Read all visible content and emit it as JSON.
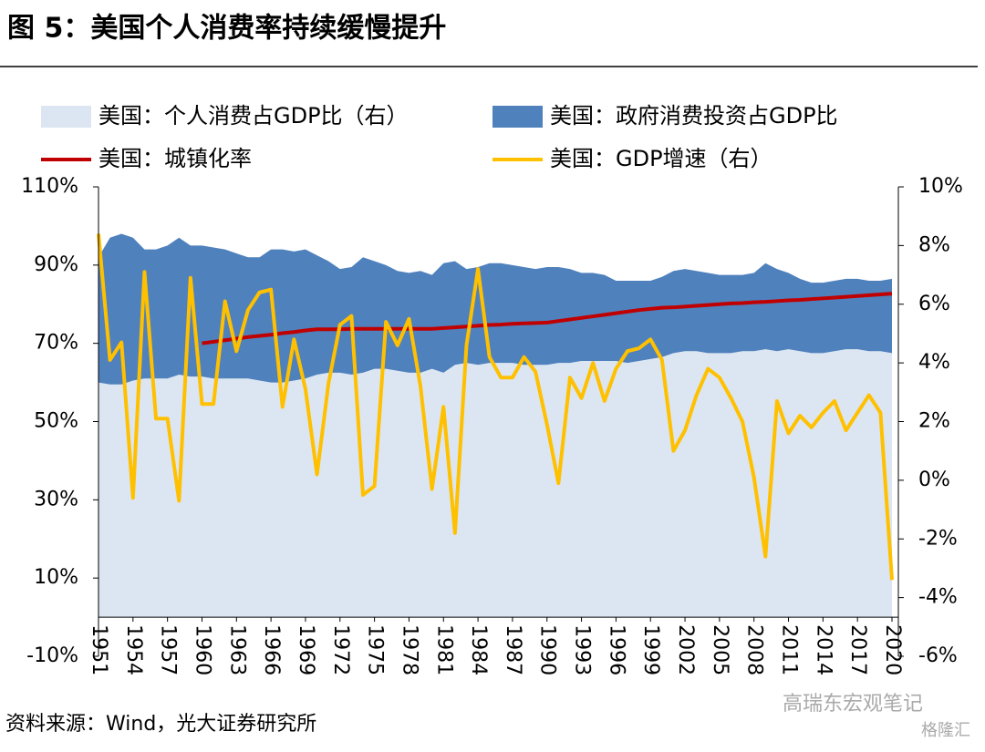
{
  "chart_data": {
    "type": "stacked-area-line",
    "title": "图 5：美国个人消费率持续缓慢提升",
    "source": "资料来源：Wind，光大证券研究所",
    "watermark": [
      "高瑞东宏观笔记",
      "格隆汇"
    ],
    "x": [
      1951,
      1952,
      1953,
      1954,
      1955,
      1956,
      1957,
      1958,
      1959,
      1960,
      1961,
      1962,
      1963,
      1964,
      1965,
      1966,
      1967,
      1968,
      1969,
      1970,
      1971,
      1972,
      1973,
      1974,
      1975,
      1976,
      1977,
      1978,
      1979,
      1980,
      1981,
      1982,
      1983,
      1984,
      1985,
      1986,
      1987,
      1988,
      1989,
      1990,
      1991,
      1992,
      1993,
      1994,
      1995,
      1996,
      1997,
      1998,
      1999,
      2000,
      2001,
      2002,
      2003,
      2004,
      2005,
      2006,
      2007,
      2008,
      2009,
      2010,
      2011,
      2012,
      2013,
      2014,
      2015,
      2016,
      2017,
      2018,
      2019,
      2020
    ],
    "xlim": [
      1951,
      2020
    ],
    "xticks": [
      1951,
      1954,
      1957,
      1960,
      1963,
      1966,
      1969,
      1972,
      1975,
      1978,
      1981,
      1984,
      1987,
      1990,
      1993,
      1996,
      1999,
      2002,
      2005,
      2008,
      2011,
      2014,
      2017,
      2020
    ],
    "ylim": [
      -10,
      110
    ],
    "yticks": [
      {
        "value": -10,
        "label": "-10%"
      },
      {
        "value": 10,
        "label": "10%"
      },
      {
        "value": 30,
        "label": "30%"
      },
      {
        "value": 50,
        "label": "50%"
      },
      {
        "value": 70,
        "label": "70%"
      },
      {
        "value": 90,
        "label": "90%"
      },
      {
        "value": 110,
        "label": "110%"
      }
    ],
    "y2lim": [
      -6,
      10
    ],
    "y2ticks": [
      {
        "value": -6,
        "label": "-6%"
      },
      {
        "value": -4,
        "label": "-4%"
      },
      {
        "value": -2,
        "label": "-2%"
      },
      {
        "value": 0,
        "label": "0%"
      },
      {
        "value": 2,
        "label": "2%"
      },
      {
        "value": 4,
        "label": "4%"
      },
      {
        "value": 6,
        "label": "6%"
      },
      {
        "value": 8,
        "label": "8%"
      },
      {
        "value": 10,
        "label": "10%"
      }
    ],
    "series": [
      {
        "name": "美国：个人消费占GDP比（右）",
        "kind": "area",
        "color": "#dce6f2",
        "values": [
          60,
          59.5,
          59.5,
          60.5,
          61,
          61,
          61,
          62,
          61.5,
          61.5,
          61,
          61,
          61,
          61,
          60.5,
          60,
          60,
          60.5,
          61,
          62,
          62.5,
          62.5,
          62,
          62.5,
          63.5,
          63.5,
          63,
          62.5,
          62.5,
          63.5,
          62.5,
          64.5,
          65,
          64.5,
          65,
          65,
          65,
          64.5,
          64.5,
          64.5,
          65,
          65,
          65.5,
          65.5,
          65.5,
          65.5,
          65,
          65.5,
          66,
          66.5,
          67.5,
          68,
          68,
          67.5,
          67.5,
          67.5,
          68,
          68,
          68.5,
          68,
          68.5,
          68,
          67.5,
          67.5,
          68,
          68.5,
          68.5,
          68,
          68,
          67.5
        ]
      },
      {
        "name": "美国：政府消费投资占GDP比",
        "kind": "area",
        "color": "#4f81bd",
        "values": [
          32,
          37.5,
          38.5,
          36.5,
          33,
          33,
          34,
          35,
          33.5,
          33.5,
          33.5,
          33,
          32,
          31,
          31.5,
          34,
          34,
          33,
          33,
          30.5,
          28.5,
          26.5,
          27.5,
          29.5,
          27.5,
          26.5,
          25.5,
          25.5,
          26,
          24,
          28,
          26.5,
          24,
          25,
          25.5,
          25.5,
          25,
          25,
          24.5,
          25,
          24.5,
          24,
          22.5,
          22.5,
          22,
          20.5,
          21,
          20.5,
          20,
          20.5,
          21,
          21,
          20.5,
          20.5,
          20,
          20,
          19.5,
          20,
          22,
          21,
          19.5,
          18.5,
          18,
          18,
          18,
          18,
          18,
          18,
          18,
          19
        ]
      },
      {
        "name": "美国：城镇化率",
        "kind": "line",
        "color": "#c00000",
        "values": [
          null,
          null,
          null,
          null,
          null,
          null,
          null,
          null,
          null,
          70.0,
          70.4,
          70.8,
          71.2,
          71.6,
          71.9,
          72.2,
          72.6,
          72.9,
          73.3,
          73.6,
          73.6,
          73.6,
          73.7,
          73.7,
          73.7,
          73.7,
          73.7,
          73.7,
          73.7,
          73.7,
          73.9,
          74.1,
          74.3,
          74.5,
          74.7,
          74.8,
          75.0,
          75.1,
          75.2,
          75.3,
          75.7,
          76.1,
          76.5,
          76.9,
          77.3,
          77.7,
          78.1,
          78.5,
          78.8,
          79.1,
          79.2,
          79.4,
          79.6,
          79.8,
          80.0,
          80.2,
          80.3,
          80.5,
          80.6,
          80.8,
          81.0,
          81.1,
          81.3,
          81.5,
          81.7,
          81.9,
          82.1,
          82.3,
          82.5,
          82.7
        ]
      },
      {
        "name": "美国：GDP增速（右）",
        "kind": "line",
        "axis": "y2",
        "color": "#ffc000",
        "values": [
          8.4,
          4.1,
          4.7,
          -0.6,
          7.1,
          2.1,
          2.1,
          -0.7,
          6.9,
          2.6,
          2.6,
          6.1,
          4.4,
          5.8,
          6.4,
          6.5,
          2.5,
          4.8,
          3.1,
          0.2,
          3.3,
          5.3,
          5.6,
          -0.5,
          -0.2,
          5.4,
          4.6,
          5.5,
          3.2,
          -0.3,
          2.5,
          -1.8,
          4.6,
          7.2,
          4.2,
          3.5,
          3.5,
          4.2,
          3.7,
          1.9,
          -0.1,
          3.5,
          2.8,
          4.0,
          2.7,
          3.8,
          4.4,
          4.5,
          4.8,
          4.1,
          1.0,
          1.7,
          2.9,
          3.8,
          3.5,
          2.8,
          2.0,
          0.1,
          -2.6,
          2.7,
          1.6,
          2.2,
          1.8,
          2.3,
          2.7,
          1.7,
          2.3,
          2.9,
          2.3,
          -3.4
        ]
      }
    ]
  }
}
